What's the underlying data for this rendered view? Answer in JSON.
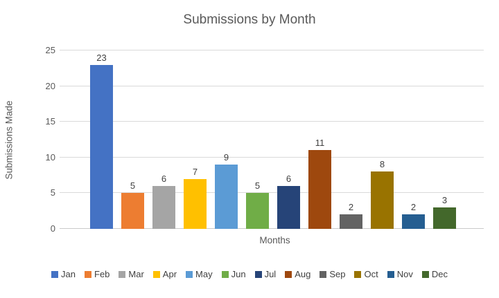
{
  "chart": {
    "title": "Submissions by Month",
    "xlabel": "Months",
    "ylabel": "Submissions Made"
  },
  "chart_data": {
    "type": "bar",
    "title": "Submissions by Month",
    "xlabel": "Months",
    "ylabel": "Submissions Made",
    "categories": [
      "Jan",
      "Feb",
      "Mar",
      "Apr",
      "May",
      "Jun",
      "Jul",
      "Aug",
      "Sep",
      "Oct",
      "Nov",
      "Dec"
    ],
    "values": [
      23,
      5,
      6,
      7,
      9,
      5,
      6,
      11,
      2,
      8,
      2,
      3
    ],
    "colors": [
      "#4472C4",
      "#ED7D31",
      "#A5A5A5",
      "#FFC000",
      "#5B9BD5",
      "#70AD47",
      "#264478",
      "#9E480E",
      "#636363",
      "#997300",
      "#255E91",
      "#43682B"
    ],
    "ylim": [
      0,
      25
    ],
    "yticks": [
      0,
      5,
      10,
      15,
      20,
      25
    ],
    "grid": true,
    "data_labels": true,
    "legend_position": "bottom"
  },
  "style_colors": {
    "gridline": "#d9d9d9",
    "axis_line": "#c9c9c9",
    "title_text": "#595959",
    "tick_text": "#595959",
    "data_label_text": "#404040"
  }
}
